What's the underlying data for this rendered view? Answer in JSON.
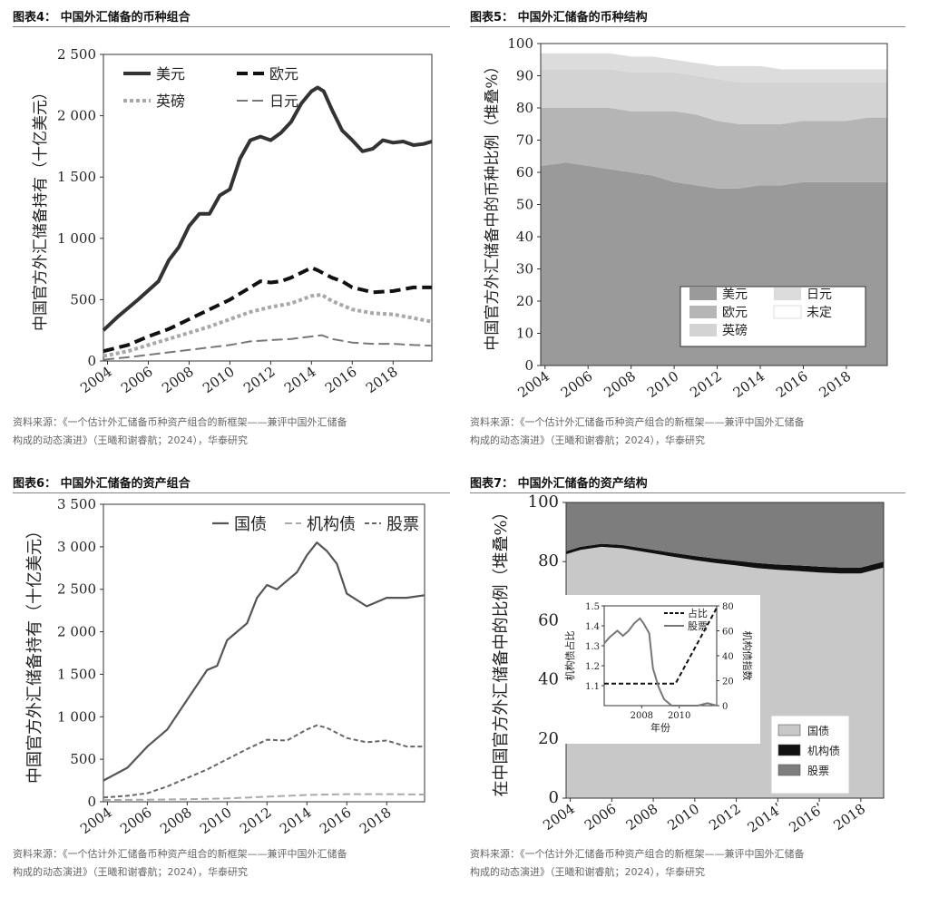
{
  "colors": {
    "usd": "#333333",
    "eur": "#111111",
    "gbp": "#a8a8a8",
    "jpy": "#777777"
  },
  "source_text_1": "资料来源：《一个估计外汇储备币种资产组合的新框架——兼评中国外汇储备",
  "source_text_2": "构成的动态演进》（王曦和谢睿航；2024），华泰研究",
  "chart_data": [
    {
      "id": "fig4",
      "type": "line",
      "title": "图表4：  中国外汇储备的币种组合",
      "ylabel": "中国官方外汇储备持有（十亿美元）",
      "ylim": [
        0,
        2500
      ],
      "yticks": [
        0,
        500,
        1000,
        1500,
        2000,
        2500
      ],
      "ytick_labels": [
        "0",
        "500",
        "1 000",
        "1 500",
        "2 000",
        "2 500"
      ],
      "xlim": [
        2003.8,
        2019.9
      ],
      "xticks": [
        2004,
        2006,
        2008,
        2010,
        2012,
        2014,
        2016,
        2018
      ],
      "series": [
        {
          "name": "美元",
          "style": "usd",
          "x": [
            2003.8,
            2004.5,
            2005.5,
            2006.5,
            2007,
            2007.5,
            2008,
            2008.5,
            2009,
            2009.5,
            2010,
            2010.5,
            2011,
            2011.5,
            2012,
            2012.5,
            2013,
            2013.5,
            2014,
            2014.3,
            2014.6,
            2015,
            2015.5,
            2016,
            2016.5,
            2017,
            2017.5,
            2018,
            2018.5,
            2019,
            2019.5,
            2019.9
          ],
          "y": [
            250,
            360,
            500,
            650,
            820,
            930,
            1100,
            1200,
            1200,
            1350,
            1400,
            1650,
            1800,
            1830,
            1800,
            1860,
            1950,
            2100,
            2200,
            2230,
            2200,
            2050,
            1880,
            1800,
            1710,
            1730,
            1800,
            1780,
            1790,
            1760,
            1770,
            1790
          ]
        },
        {
          "name": "欧元",
          "style": "eur",
          "x": [
            2003.8,
            2005,
            2006,
            2007,
            2008,
            2009,
            2010,
            2011,
            2011.5,
            2012,
            2012.5,
            2013,
            2013.5,
            2014,
            2014.3,
            2015,
            2015.5,
            2016,
            2016.5,
            2017,
            2018,
            2019,
            2019.9
          ],
          "y": [
            80,
            130,
            200,
            260,
            340,
            420,
            500,
            600,
            650,
            640,
            650,
            680,
            720,
            760,
            740,
            680,
            650,
            600,
            580,
            560,
            570,
            600,
            600
          ]
        },
        {
          "name": "英磅",
          "style": "gbp",
          "x": [
            2003.8,
            2005,
            2006,
            2007,
            2008,
            2009,
            2010,
            2011,
            2012,
            2013,
            2014,
            2014.5,
            2015,
            2016,
            2017,
            2018,
            2019,
            2019.9
          ],
          "y": [
            40,
            80,
            130,
            180,
            230,
            280,
            340,
            400,
            440,
            470,
            530,
            540,
            490,
            420,
            390,
            380,
            350,
            320
          ]
        },
        {
          "name": "日元",
          "style": "jpy",
          "x": [
            2003.8,
            2005,
            2006,
            2007,
            2008,
            2009,
            2010,
            2011,
            2012,
            2013,
            2014,
            2014.5,
            2015,
            2016,
            2017,
            2018,
            2019,
            2019.9
          ],
          "y": [
            10,
            30,
            50,
            70,
            90,
            110,
            130,
            160,
            170,
            180,
            200,
            210,
            180,
            150,
            140,
            140,
            130,
            125
          ]
        }
      ]
    },
    {
      "id": "fig5",
      "type": "area",
      "title": "图表5：  中国外汇储备的币种结构",
      "ylabel": "中国官方外汇储备中的币种比例（堆叠%）",
      "ylim": [
        0,
        100
      ],
      "yticks": [
        0,
        10,
        20,
        30,
        40,
        50,
        60,
        70,
        80,
        90,
        100
      ],
      "xlim": [
        2003.8,
        2019.9
      ],
      "xticks": [
        2004,
        2006,
        2008,
        2010,
        2012,
        2014,
        2016,
        2018
      ],
      "x": [
        2003.8,
        2005,
        2006,
        2007,
        2008,
        2009,
        2010,
        2011,
        2012,
        2013,
        2014,
        2015,
        2016,
        2017,
        2018,
        2019,
        2019.9
      ],
      "series": [
        {
          "name": "美元",
          "color": "#9a9a9a",
          "values": [
            62,
            63,
            62,
            61,
            60,
            59,
            57,
            56,
            55,
            55,
            56,
            56,
            57,
            57,
            57,
            57,
            57
          ]
        },
        {
          "name": "欧元",
          "color": "#b5b5b5",
          "values": [
            18,
            17,
            18,
            19,
            19,
            20,
            22,
            22,
            21,
            20,
            19,
            19,
            19,
            19,
            19,
            20,
            20
          ]
        },
        {
          "name": "英磅",
          "color": "#d3d3d3",
          "values": [
            12,
            12,
            12,
            12,
            12,
            12,
            12,
            12,
            13,
            13,
            13,
            13,
            12,
            12,
            12,
            11,
            11
          ]
        },
        {
          "name": "日元",
          "color": "#dcdcdc",
          "values": [
            5,
            5,
            5,
            5,
            5,
            5,
            4,
            4,
            4,
            5,
            5,
            4,
            4,
            4,
            4,
            4,
            4
          ]
        },
        {
          "name": "未定",
          "color": "#ffffff",
          "values": [
            3,
            3,
            3,
            3,
            4,
            4,
            5,
            6,
            7,
            7,
            7,
            8,
            8,
            8,
            8,
            8,
            8
          ]
        }
      ]
    },
    {
      "id": "fig6",
      "type": "line",
      "title": "图表6：  中国外汇储备的资产组合",
      "ylabel": "中国官方外汇储备持有（十亿美元）",
      "ylim": [
        0,
        3500
      ],
      "yticks": [
        0,
        500,
        1000,
        1500,
        2000,
        2500,
        3000,
        3500
      ],
      "ytick_labels": [
        "0",
        "500",
        "1 000",
        "1 500",
        "2 000",
        "2 500",
        "3 000",
        "3 500"
      ],
      "xlim": [
        2003.8,
        2019.9
      ],
      "xticks": [
        2004,
        2006,
        2008,
        2010,
        2012,
        2014,
        2016,
        2018
      ],
      "series": [
        {
          "name": "国债",
          "style": "treasury",
          "x": [
            2003.8,
            2005,
            2006,
            2007,
            2008,
            2009,
            2009.5,
            2010,
            2011,
            2011.5,
            2012,
            2012.5,
            2013,
            2013.5,
            2014,
            2014.5,
            2015,
            2015.5,
            2016,
            2017,
            2018,
            2019,
            2019.9
          ],
          "y": [
            250,
            400,
            650,
            850,
            1200,
            1550,
            1600,
            1900,
            2100,
            2400,
            2550,
            2500,
            2600,
            2700,
            2900,
            3050,
            2950,
            2800,
            2450,
            2300,
            2400,
            2400,
            2430
          ]
        },
        {
          "name": "机构债",
          "style": "agency",
          "x": [
            2003.8,
            2006,
            2008,
            2010,
            2012,
            2014,
            2016,
            2018,
            2019.9
          ],
          "y": [
            20,
            25,
            30,
            40,
            60,
            80,
            90,
            90,
            85
          ]
        },
        {
          "name": "股票",
          "style": "equity",
          "x": [
            2003.8,
            2005,
            2006,
            2007,
            2008,
            2009,
            2010,
            2011,
            2012,
            2013,
            2014,
            2014.5,
            2015,
            2016,
            2017,
            2018,
            2019,
            2019.9
          ],
          "y": [
            50,
            70,
            100,
            180,
            280,
            380,
            500,
            620,
            730,
            720,
            850,
            900,
            870,
            750,
            700,
            720,
            650,
            650
          ]
        }
      ]
    },
    {
      "id": "fig7",
      "type": "area",
      "title": "图表7：  中国外汇储备的资产结构",
      "ylabel": "在中国官方外汇储备中的比例（堆叠%）",
      "ylim": [
        0,
        100
      ],
      "yticks": [
        0,
        20,
        40,
        60,
        80,
        100
      ],
      "xlim": [
        2003.8,
        2019.1
      ],
      "xticks": [
        2004,
        2006,
        2008,
        2010,
        2012,
        2014,
        2016,
        2018
      ],
      "xtick_labels": [
        "2004",
        "2006",
        "2008",
        "2010",
        "2012",
        "2014ʹ",
        "2016ʹ",
        "2018"
      ],
      "x": [
        2003.8,
        2004.5,
        2005.5,
        2006.5,
        2008,
        2009,
        2010,
        2011,
        2012,
        2013,
        2014,
        2015,
        2016,
        2017,
        2018,
        2019.1
      ],
      "series": [
        {
          "name": "国债",
          "color": "#c8c8c8",
          "values": [
            82.5,
            84,
            85,
            84.5,
            82.8,
            81.6,
            80.5,
            79.5,
            78.7,
            77.8,
            77.2,
            76.8,
            76.3,
            76,
            76,
            78
          ]
        },
        {
          "name": "机构债",
          "color": "#111111",
          "values": [
            1.0,
            1.0,
            1.0,
            1.1,
            1.2,
            1.3,
            1.4,
            1.5,
            1.6,
            1.7,
            1.8,
            1.9,
            2.0,
            2.0,
            2.0,
            2.0
          ]
        },
        {
          "name": "股票",
          "color": "#7d7d7d",
          "values": [
            16.5,
            15,
            14,
            14.4,
            16,
            17.1,
            18.1,
            19,
            19.7,
            20.5,
            21,
            21.3,
            21.7,
            22,
            22,
            20
          ]
        }
      ],
      "inset": {
        "xlabel": "年份",
        "ylabel_left": "机构债占比",
        "ylabel_right": "机构债指数",
        "ylim_left": [
          1.0,
          1.5
        ],
        "yticks_left": [
          1.1,
          1.2,
          1.3,
          1.4,
          1.5
        ],
        "ylim_right": [
          0,
          80
        ],
        "yticks_right": [
          0,
          20,
          40,
          60,
          80
        ],
        "xlim": [
          2006,
          2012
        ],
        "xticks": [
          2008,
          2010
        ],
        "series": [
          {
            "name": "占比",
            "style": "dashed",
            "axis": "left",
            "x": [
              2006,
              2009.8,
              2012
            ],
            "y": [
              1.11,
              1.11,
              1.49
            ]
          },
          {
            "name": "股票",
            "style": "solid",
            "axis": "right",
            "x": [
              2006,
              2006.3,
              2006.7,
              2007,
              2007.3,
              2007.6,
              2007.9,
              2008.1,
              2008.4,
              2008.6,
              2008.9,
              2009.2,
              2009.6,
              2010,
              2010.5,
              2011,
              2011.5,
              2012
            ],
            "y": [
              50,
              55,
              60,
              56,
              60,
              66,
              70,
              66,
              58,
              30,
              15,
              5,
              0,
              0,
              0,
              0,
              2,
              0
            ]
          }
        ]
      },
      "legend": [
        "国债",
        "机构债",
        "股票"
      ]
    }
  ]
}
